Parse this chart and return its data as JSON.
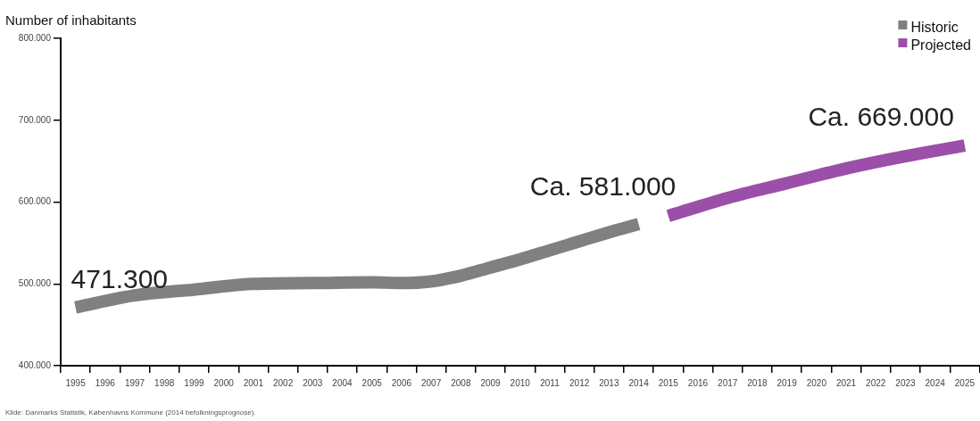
{
  "chart_data": {
    "type": "line",
    "ylabel": "Number of inhabitants",
    "categories": [
      "1995",
      "1996",
      "1997",
      "1998",
      "1999",
      "2000",
      "2001",
      "2002",
      "2003",
      "2004",
      "2005",
      "2006",
      "2007",
      "2008",
      "2009",
      "2010",
      "2011",
      "2012",
      "2013",
      "2014",
      "2015",
      "2016",
      "2017",
      "2018",
      "2019",
      "2020",
      "2021",
      "2022",
      "2023",
      "2024",
      "2025"
    ],
    "series": [
      {
        "name": "Historic",
        "color": "#808080",
        "values": [
          471300,
          null,
          486000,
          null,
          493000,
          null,
          500000,
          null,
          501000,
          null,
          502000,
          501000,
          503000,
          510000,
          520000,
          530000,
          541000,
          552000,
          563000,
          573000,
          null,
          null,
          null,
          null,
          null,
          null,
          null,
          null,
          null,
          null,
          null
        ]
      },
      {
        "name": "Projected",
        "color": "#9b4fa8",
        "values": [
          null,
          null,
          null,
          null,
          null,
          null,
          null,
          null,
          null,
          null,
          null,
          null,
          null,
          null,
          null,
          null,
          null,
          null,
          null,
          null,
          583000,
          null,
          605000,
          null,
          623000,
          null,
          641000,
          null,
          656000,
          null,
          669000
        ]
      }
    ],
    "ylim": [
      400000,
      800000
    ],
    "yticks": [
      {
        "value": 400000,
        "label": "400.000"
      },
      {
        "value": 500000,
        "label": "500.000"
      },
      {
        "value": 600000,
        "label": "600.000"
      },
      {
        "value": 700000,
        "label": "700.000"
      },
      {
        "value": 800000,
        "label": "800.000"
      }
    ],
    "grid": false,
    "legend": "top right",
    "marker": "none",
    "line_style": "solid",
    "annotations": [
      {
        "text": "471.300",
        "x": "1995",
        "y": 471300
      },
      {
        "text": "Ca. 581.000",
        "x": "2014",
        "y": 573000
      },
      {
        "text": "Ca. 669.000",
        "x": "2025",
        "y": 669000
      },
      "Kilde: Danmarks Statistik, Københavns Kommune (2014 befolkningsprognose)."
    ]
  }
}
